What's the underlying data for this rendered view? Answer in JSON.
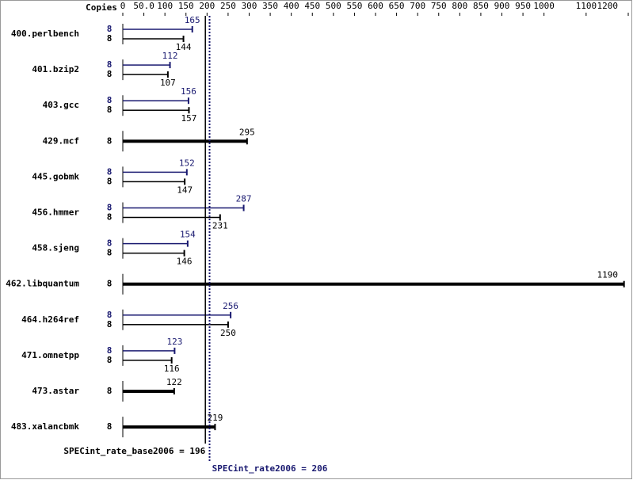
{
  "chart_data": {
    "type": "bar",
    "orientation": "horizontal",
    "axis_title": "Copies",
    "categories": [
      "400.perlbench",
      "401.bzip2",
      "403.gcc",
      "429.mcf",
      "445.gobmk",
      "456.hmmer",
      "458.sjeng",
      "462.libquantum",
      "464.h264ref",
      "471.omnetpp",
      "473.astar",
      "483.xalancbmk"
    ],
    "series": [
      {
        "color": "#191970",
        "values": [
          165,
          112,
          156,
          null,
          152,
          287,
          154,
          null,
          256,
          123,
          null,
          null
        ],
        "copies": [
          8,
          8,
          8,
          null,
          8,
          8,
          8,
          null,
          8,
          8,
          null,
          null
        ]
      },
      {
        "color": "#000000",
        "values": [
          144,
          107,
          157,
          295,
          147,
          231,
          146,
          1190,
          250,
          116,
          122,
          219
        ],
        "copies": [
          8,
          8,
          8,
          8,
          8,
          8,
          8,
          8,
          8,
          8,
          8,
          8
        ]
      }
    ],
    "xlim": [
      0,
      1200
    ],
    "xticks": [
      0,
      {
        "value": 50,
        "label": "50.0"
      },
      100,
      150,
      200,
      250,
      300,
      350,
      400,
      450,
      500,
      550,
      600,
      650,
      700,
      750,
      800,
      850,
      900,
      950,
      1000,
      1100,
      1200
    ],
    "reference_lines": [
      {
        "value": 196,
        "label": "SPECint_rate_base2006 = 196",
        "color": "#000000"
      },
      {
        "value": 206,
        "label": "SPECint_rate2006 = 206",
        "color": "#191970"
      }
    ]
  }
}
